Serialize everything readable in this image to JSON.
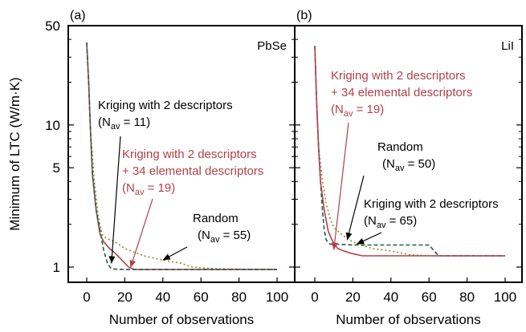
{
  "chart_data": [
    {
      "type": "line",
      "panel_label": "(a)",
      "material": "PbSe",
      "xlabel": "Number of observations",
      "ylabel": "Minimum of LTC (W/m·K)",
      "xlim": [
        -10,
        102
      ],
      "ylim": [
        0.85,
        50
      ],
      "yscale": "log",
      "x_ticks": [
        "0",
        "20",
        "40",
        "60",
        "80",
        "100"
      ],
      "y_ticks": [
        "1",
        "5",
        "10",
        "50"
      ],
      "series": [
        {
          "label_lines": [
            "Kriging with 2 descriptors",
            "(N",
            "av",
            " = 11)"
          ],
          "color": "#1f5f4a",
          "dash": "5,3",
          "points": [
            [
              0,
              38
            ],
            [
              1,
              20
            ],
            [
              2,
              9
            ],
            [
              3,
              4.5
            ],
            [
              5,
              2.5
            ],
            [
              7,
              1.8
            ],
            [
              9,
              1.3
            ],
            [
              11,
              1.05
            ],
            [
              13,
              0.97
            ],
            [
              20,
              0.96
            ],
            [
              60,
              0.96
            ],
            [
              100,
              0.96
            ]
          ]
        },
        {
          "label_lines": [
            "Kriging with 2 descriptors",
            "+ 34 elemental descriptors",
            "(N",
            "av",
            " = 19)"
          ],
          "color": "#b34048",
          "dash": "",
          "points": [
            [
              0,
              38
            ],
            [
              1,
              20
            ],
            [
              2,
              9
            ],
            [
              3,
              4.5
            ],
            [
              5,
              2.5
            ],
            [
              7,
              1.7
            ],
            [
              9,
              1.5
            ],
            [
              12,
              1.35
            ],
            [
              15,
              1.25
            ],
            [
              19,
              1.1
            ],
            [
              22,
              1.0
            ],
            [
              25,
              0.96
            ],
            [
              60,
              0.96
            ],
            [
              100,
              0.96
            ]
          ]
        },
        {
          "label_lines": [
            "Random",
            "(N",
            "av",
            " = 55)"
          ],
          "color": "#8a8a2a",
          "dash": "2,3",
          "points": [
            [
              0,
              38
            ],
            [
              1,
              20
            ],
            [
              2,
              9
            ],
            [
              4,
              4
            ],
            [
              6,
              2.3
            ],
            [
              8,
              1.7
            ],
            [
              10,
              1.6
            ],
            [
              15,
              1.5
            ],
            [
              20,
              1.35
            ],
            [
              30,
              1.2
            ],
            [
              40,
              1.12
            ],
            [
              50,
              1.06
            ],
            [
              55,
              1.0
            ],
            [
              70,
              0.97
            ],
            [
              100,
              0.96
            ]
          ]
        }
      ]
    },
    {
      "type": "line",
      "panel_label": "(b)",
      "material": "LiI",
      "xlabel": "Number of observations",
      "xlim": [
        -10,
        102
      ],
      "ylim": [
        0.85,
        50
      ],
      "yscale": "log",
      "x_ticks": [
        "0",
        "20",
        "40",
        "60",
        "80",
        "100"
      ],
      "series": [
        {
          "label_lines": [
            "Kriging with 2 descriptors",
            "+ 34 elemental descriptors",
            "(N",
            "av",
            " = 19)"
          ],
          "color": "#b34048",
          "dash": "",
          "points": [
            [
              0,
              36
            ],
            [
              1,
              14
            ],
            [
              2,
              7
            ],
            [
              3,
              4
            ],
            [
              5,
              2.5
            ],
            [
              7,
              1.8
            ],
            [
              9,
              1.55
            ],
            [
              12,
              1.35
            ],
            [
              15,
              1.3
            ],
            [
              19,
              1.25
            ],
            [
              25,
              1.2
            ],
            [
              50,
              1.2
            ],
            [
              100,
              1.2
            ]
          ]
        },
        {
          "label_lines": [
            "Random",
            "(N",
            "av",
            " = 50)"
          ],
          "color": "#8a8a2a",
          "dash": "2,3",
          "points": [
            [
              0,
              36
            ],
            [
              1,
              14
            ],
            [
              2,
              7
            ],
            [
              4,
              4
            ],
            [
              6,
              2.8
            ],
            [
              8,
              2.2
            ],
            [
              10,
              1.9
            ],
            [
              14,
              1.7
            ],
            [
              20,
              1.5
            ],
            [
              30,
              1.35
            ],
            [
              40,
              1.3
            ],
            [
              50,
              1.22
            ],
            [
              60,
              1.2
            ],
            [
              100,
              1.2
            ]
          ]
        },
        {
          "label_lines": [
            "Kriging with 2 descriptors",
            "(N",
            "av",
            " = 65)"
          ],
          "color": "#1f5f4a",
          "dash": "5,3",
          "points": [
            [
              0,
              36
            ],
            [
              1,
              14
            ],
            [
              2,
              7
            ],
            [
              3,
              4
            ],
            [
              4,
              2.5
            ],
            [
              5,
              1.8
            ],
            [
              6,
              1.55
            ],
            [
              8,
              1.45
            ],
            [
              10,
              1.45
            ],
            [
              20,
              1.43
            ],
            [
              40,
              1.43
            ],
            [
              60,
              1.43
            ],
            [
              65,
              1.2
            ],
            [
              100,
              1.2
            ]
          ]
        }
      ]
    }
  ]
}
